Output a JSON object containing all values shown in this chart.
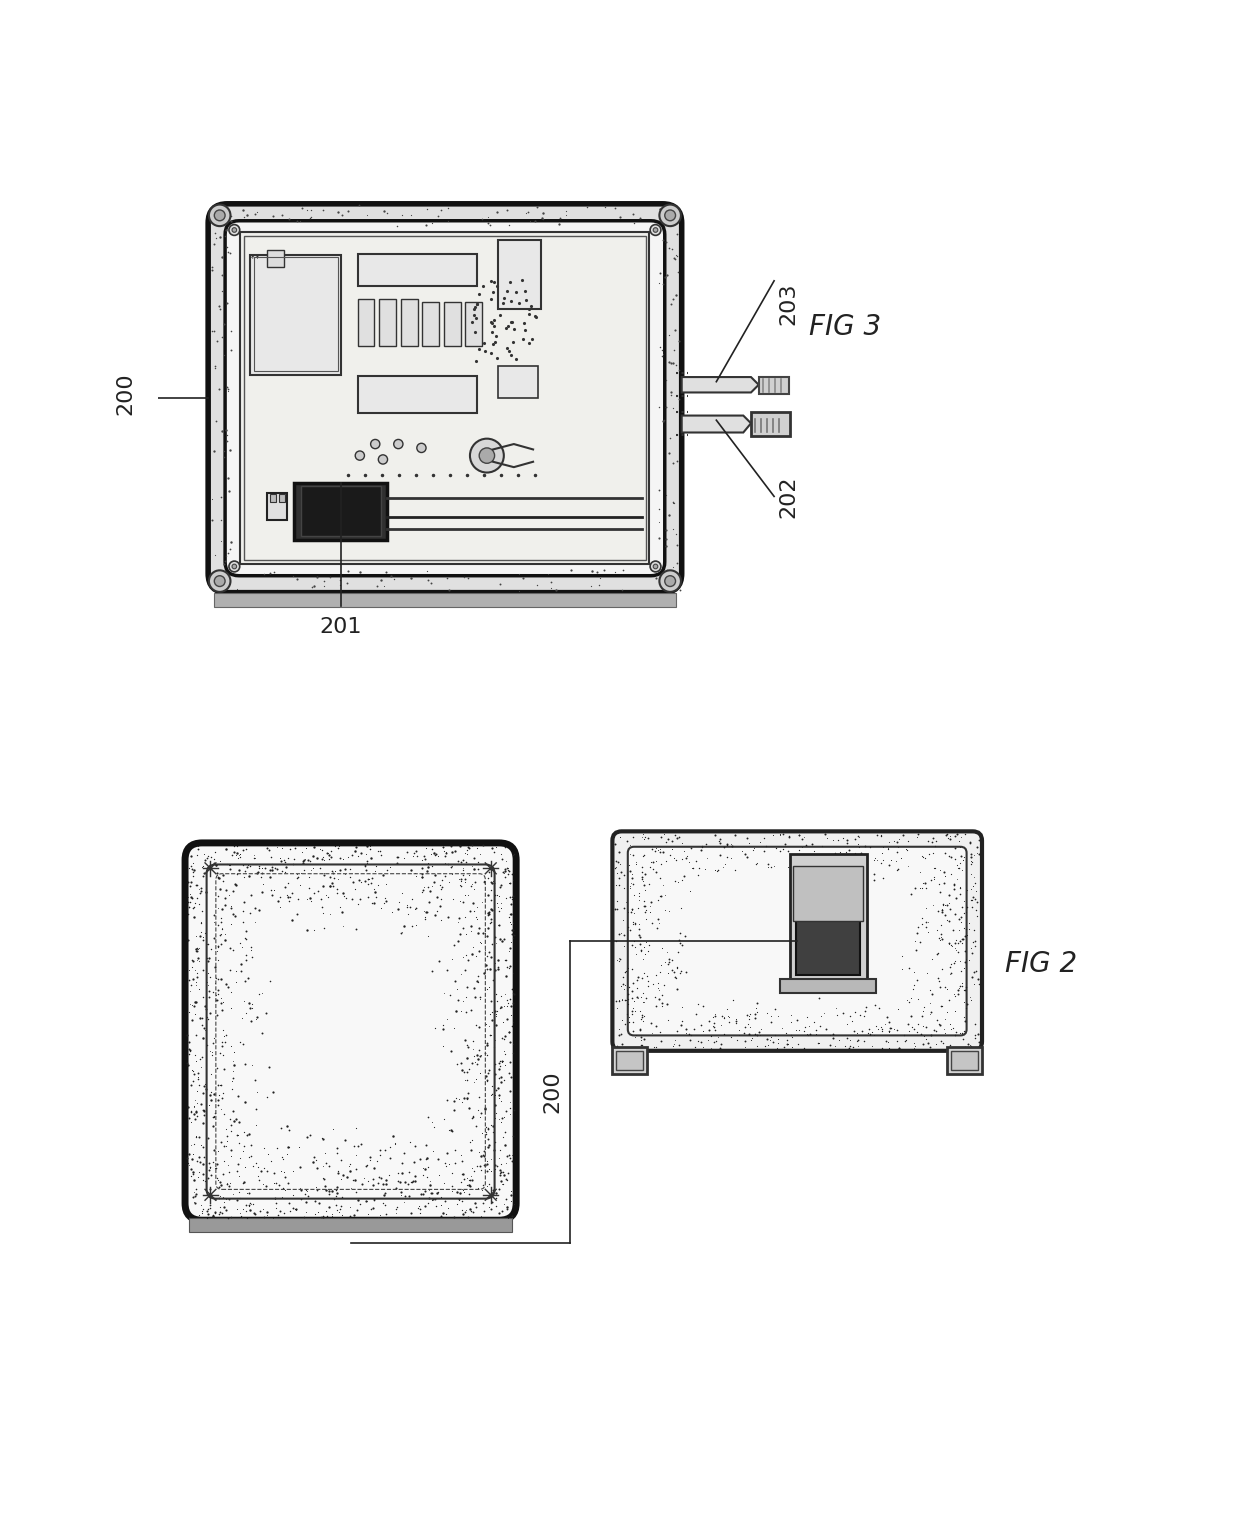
{
  "bg_color": "#ffffff",
  "fig_width": 12.4,
  "fig_height": 15.38,
  "fig3_label": "FIG 3",
  "fig2_label": "FIG 2",
  "label_200_fig3": "200",
  "label_201": "201",
  "label_202": "202",
  "label_203": "203",
  "label_200_fig2": "200",
  "lc": "#222222",
  "dark": "#111111",
  "mid": "#777777",
  "light": "#cccccc",
  "white": "#ffffff"
}
